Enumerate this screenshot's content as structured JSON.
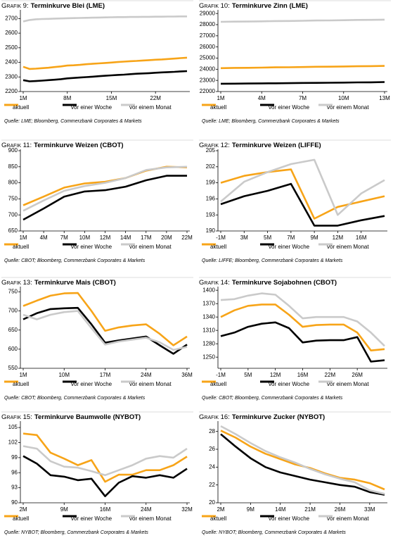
{
  "chart_data": [
    {
      "type": "line",
      "label": "Grafik 9:",
      "title": "Terminkurve Blei (LME)",
      "categories": [
        "1M",
        null,
        null,
        null,
        null,
        null,
        null,
        "8M",
        null,
        null,
        null,
        null,
        null,
        null,
        "15M",
        null,
        null,
        null,
        null,
        null,
        null,
        "22M",
        null,
        null,
        null,
        null,
        null
      ],
      "series": [
        {
          "name": "aktuell",
          "color": "#f7a418",
          "values": [
            2370,
            2355,
            2357,
            2360,
            2363,
            2368,
            2372,
            2378,
            2380,
            2383,
            2387,
            2390,
            2393,
            2396,
            2399,
            2402,
            2405,
            2408,
            2410,
            2413,
            2415,
            2418,
            2420,
            2423,
            2426,
            2429,
            2432
          ]
        },
        {
          "name": "vor einer Woche",
          "color": "#000000",
          "values": [
            2278,
            2270,
            2272,
            2275,
            2278,
            2281,
            2285,
            2290,
            2293,
            2296,
            2299,
            2302,
            2305,
            2308,
            2311,
            2314,
            2316,
            2319,
            2322,
            2324,
            2326,
            2329,
            2331,
            2333,
            2335,
            2338,
            2340
          ]
        },
        {
          "name": "vor einem Monat",
          "color": "#cacaca",
          "values": [
            2680,
            2690,
            2695,
            2697,
            2698,
            2700,
            2701,
            2702,
            2703,
            2704,
            2705,
            2706,
            2707,
            2708,
            2709,
            2710,
            2710,
            2711,
            2711,
            2712,
            2712,
            2713,
            2713,
            2714,
            2714,
            2715,
            2715
          ]
        }
      ],
      "ylim": [
        2200,
        2750
      ],
      "yticks": [
        2200,
        2300,
        2400,
        2500,
        2600,
        2700
      ],
      "source": "Quelle: LME; Bloomberg, Commerzbank Corporates & Markets"
    },
    {
      "type": "line",
      "label": "Grafik 10:",
      "title": "Terminkurve Zinn (LME)",
      "categories": [
        "1M",
        null,
        null,
        "4M",
        null,
        null,
        "7M",
        null,
        null,
        "10M",
        null,
        null,
        "13M"
      ],
      "series": [
        {
          "name": "aktuell",
          "color": "#f7a418",
          "values": [
            24100,
            24120,
            24130,
            24150,
            24170,
            24180,
            24200,
            24220,
            24230,
            24250,
            24270,
            24280,
            24300
          ]
        },
        {
          "name": "vor einer Woche",
          "color": "#000000",
          "values": [
            22700,
            22710,
            22720,
            22730,
            22740,
            22750,
            22770,
            22780,
            22790,
            22800,
            22820,
            22830,
            22850
          ]
        },
        {
          "name": "vor einem Monat",
          "color": "#cacaca",
          "values": [
            28250,
            28270,
            28280,
            28300,
            28320,
            28330,
            28350,
            28370,
            28380,
            28400,
            28420,
            28430,
            28450
          ]
        }
      ],
      "ylim": [
        22000,
        29200
      ],
      "yticks": [
        22000,
        23000,
        24000,
        25000,
        26000,
        27000,
        28000,
        29000
      ],
      "source": "Quelle: LME; Bloomberg, Commerzbank Corporates & Markets"
    },
    {
      "type": "line",
      "label": "Grafik 11:",
      "title": "Terminkurve Weizen (CBOT)",
      "categories": [
        "1M",
        "4M",
        "7M",
        "10M",
        "12M",
        "14M",
        "17M",
        "20M",
        "22M"
      ],
      "series": [
        {
          "name": "aktuell",
          "color": "#f7a418",
          "values": [
            730,
            757,
            785,
            798,
            803,
            815,
            838,
            850,
            848
          ]
        },
        {
          "name": "vor einer Woche",
          "color": "#000000",
          "values": [
            685,
            720,
            757,
            773,
            777,
            788,
            808,
            822,
            822
          ]
        },
        {
          "name": "vor einem Monat",
          "color": "#cacaca",
          "values": [
            713,
            745,
            775,
            790,
            800,
            815,
            840,
            848,
            850
          ]
        }
      ],
      "ylim": [
        650,
        900
      ],
      "yticks": [
        650,
        700,
        750,
        800,
        850,
        900
      ],
      "source": "Quelle: CBOT; Bloomberg, Commerzbank Corporates & Markets"
    },
    {
      "type": "line",
      "label": "Grafik 12:",
      "title": "Terminkurve Weizen (LIFFE)",
      "categories": [
        "-1M",
        "3M",
        "5M",
        "7M",
        "9M",
        "12M",
        "16M",
        null
      ],
      "series": [
        {
          "name": "aktuell",
          "color": "#f7a418",
          "values": [
            199,
            200.3,
            201,
            201.5,
            192.3,
            194.5,
            195.5,
            196.5
          ]
        },
        {
          "name": "vor einer Woche",
          "color": "#000000",
          "values": [
            195,
            196.5,
            197.5,
            198.8,
            191,
            191,
            192,
            192.8
          ]
        },
        {
          "name": "vor einem Monat",
          "color": "#cacaca",
          "values": [
            195.5,
            199.2,
            201,
            202.5,
            203.3,
            193,
            197,
            199.5
          ]
        }
      ],
      "ylim": [
        190,
        205
      ],
      "yticks": [
        190,
        193,
        196,
        199,
        202,
        205
      ],
      "source": "Quelle: LIFFE; Bloomberg, Commerzbank Corporates & Markets"
    },
    {
      "type": "line",
      "label": "Grafik 13:",
      "title": "Terminkurve Mais (CBOT)",
      "categories": [
        "1M",
        null,
        null,
        "10M",
        null,
        null,
        "17M",
        null,
        null,
        "24M",
        null,
        null,
        "36M"
      ],
      "series": [
        {
          "name": "aktuell",
          "color": "#f7a418",
          "values": [
            713,
            727,
            740,
            746,
            747,
            700,
            648,
            657,
            662,
            665,
            640,
            610,
            633
          ]
        },
        {
          "name": "vor einer Woche",
          "color": "#000000",
          "values": [
            678,
            694,
            705,
            707,
            708,
            665,
            617,
            623,
            628,
            633,
            610,
            588,
            612
          ]
        },
        {
          "name": "vor einem Monat",
          "color": "#cacaca",
          "values": [
            690,
            678,
            690,
            697,
            700,
            655,
            612,
            620,
            625,
            630,
            618,
            598,
            606
          ]
        }
      ],
      "ylim": [
        550,
        760
      ],
      "yticks": [
        550,
        600,
        650,
        700,
        750
      ],
      "source": "Quelle: CBOT; Bloomberg, Commerzbank Corporates & Markets"
    },
    {
      "type": "line",
      "label": "Grafik 14:",
      "title": "Terminkurve Sojabohnen (CBOT)",
      "categories": [
        "-1M",
        null,
        "5M",
        null,
        "12M",
        null,
        "16M",
        null,
        "22M",
        null,
        "26M",
        null,
        null
      ],
      "series": [
        {
          "name": "aktuell",
          "color": "#f7a418",
          "values": [
            1340,
            1355,
            1365,
            1368,
            1368,
            1345,
            1318,
            1322,
            1323,
            1323,
            1305,
            1265,
            1268
          ]
        },
        {
          "name": "vor einer Woche",
          "color": "#000000",
          "values": [
            1297,
            1305,
            1318,
            1325,
            1328,
            1315,
            1283,
            1287,
            1288,
            1288,
            1295,
            1240,
            1243
          ]
        },
        {
          "name": "vor einem Monat",
          "color": "#cacaca",
          "values": [
            1378,
            1380,
            1388,
            1393,
            1390,
            1365,
            1337,
            1340,
            1340,
            1340,
            1330,
            1305,
            1275
          ]
        }
      ],
      "ylim": [
        1225,
        1405
      ],
      "yticks": [
        1250,
        1280,
        1310,
        1340,
        1370,
        1400
      ],
      "source": "Quelle: CBOT; Bloomberg, Commerzbank Corporates & Markets"
    },
    {
      "type": "line",
      "label": "Grafik 15:",
      "title": "Terminkurve Baumwolle (NYBOT)",
      "categories": [
        "2M",
        null,
        null,
        "9M",
        null,
        null,
        "16M",
        null,
        null,
        "24M",
        null,
        null,
        "32M"
      ],
      "series": [
        {
          "name": "aktuell",
          "color": "#f7a418",
          "values": [
            103.8,
            103.5,
            100,
            98.8,
            97.5,
            98.5,
            94.2,
            95.6,
            95.6,
            96.5,
            96.5,
            97.5,
            99.2
          ]
        },
        {
          "name": "vor einer Woche",
          "color": "#000000",
          "values": [
            99.3,
            97.8,
            95.5,
            95.2,
            94.5,
            94.8,
            91.3,
            94,
            95.3,
            95,
            95.5,
            95,
            96.8
          ]
        },
        {
          "name": "vor einem Monat",
          "color": "#cacaca",
          "values": [
            101.3,
            100.8,
            98.3,
            97.2,
            97,
            96.3,
            95.5,
            96.5,
            97.5,
            98.8,
            99.3,
            99,
            100.8
          ]
        }
      ],
      "ylim": [
        90,
        106
      ],
      "yticks": [
        90,
        93,
        96,
        99,
        102,
        105
      ],
      "source": "Quelle: NYBOT; Bloomberg, Commerzbank Corporates & Markets"
    },
    {
      "type": "line",
      "label": "Grafik 16:",
      "title": "Terminkurve Zucker (NYBOT)",
      "categories": [
        "2M",
        null,
        "9M",
        null,
        "14M",
        null,
        "21M",
        null,
        "26M",
        null,
        "33M",
        null
      ],
      "series": [
        {
          "name": "aktuell",
          "color": "#f7a418",
          "values": [
            28.1,
            27.3,
            26.3,
            25.5,
            24.9,
            24.3,
            23.9,
            23.3,
            22.8,
            22.6,
            22.2,
            21.5
          ]
        },
        {
          "name": "vor einer Woche",
          "color": "#000000",
          "values": [
            27.7,
            26.3,
            25,
            24,
            23.4,
            23,
            22.6,
            22.3,
            22,
            21.8,
            21.2,
            20.9
          ]
        },
        {
          "name": "vor einem Monat",
          "color": "#cacaca",
          "values": [
            28.6,
            27.7,
            26.7,
            25.8,
            25.1,
            24.5,
            23.8,
            23.2,
            22.7,
            22.3,
            21.4,
            21
          ]
        }
      ],
      "ylim": [
        20,
        29
      ],
      "yticks": [
        20,
        22,
        24,
        26,
        28
      ],
      "source": "Quelle: NYBOT; Bloomberg, Commerzbank Corporates & Markets"
    }
  ]
}
